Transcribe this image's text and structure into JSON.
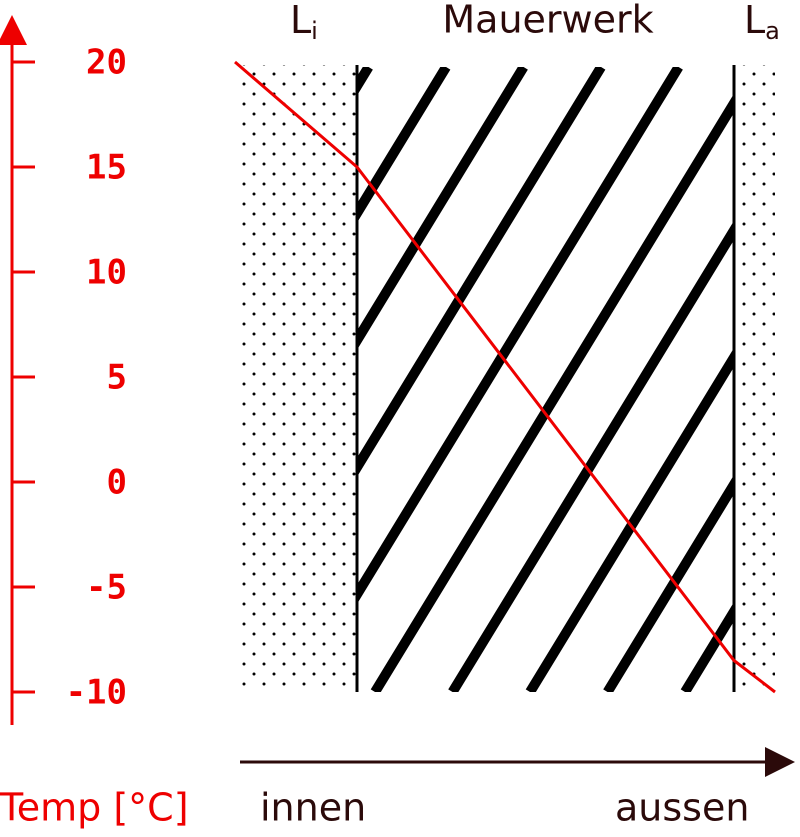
{
  "chart_data": {
    "type": "line",
    "title": "Mauerwerk",
    "layers": [
      {
        "label": "L",
        "subscript": "i"
      },
      {
        "label": "L",
        "subscript": "a"
      }
    ],
    "ylabel": "Temp [°C]",
    "x_start_label": "innen",
    "x_end_label": "aussen",
    "values": [
      20,
      15,
      -8.5,
      -10
    ],
    "color": "#ee0000",
    "ylim": [
      -10,
      20
    ],
    "yticks": [
      20,
      15,
      10,
      5,
      0,
      -5,
      -10
    ]
  }
}
